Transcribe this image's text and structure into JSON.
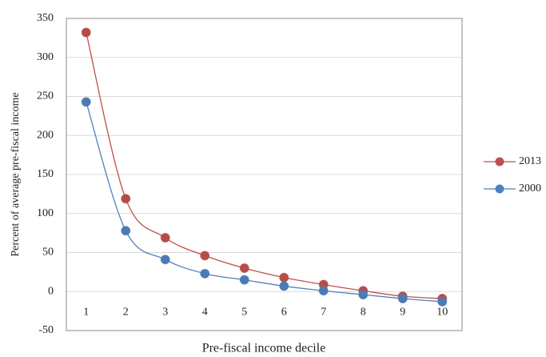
{
  "chart_data": {
    "type": "line",
    "x_label": "Pre-fiscal income decile",
    "y_label": "Percent of average pre-fiscal income",
    "categories": [
      "1",
      "2",
      "3",
      "4",
      "5",
      "6",
      "7",
      "8",
      "9",
      "10"
    ],
    "series": [
      {
        "name": "2013",
        "color": "#c0504d",
        "values": [
          332,
          119,
          69,
          46,
          30,
          18,
          9,
          1,
          -6,
          -9
        ]
      },
      {
        "name": "2000",
        "color": "#4f81bd",
        "values": [
          243,
          78,
          41,
          23,
          15,
          7,
          1,
          -4,
          -9,
          -13
        ]
      }
    ],
    "ylim": [
      -50,
      350
    ],
    "yticks": [
      -50,
      0,
      50,
      100,
      150,
      200,
      250,
      300,
      350
    ],
    "grid": true,
    "legend": "right",
    "smooth": true
  }
}
